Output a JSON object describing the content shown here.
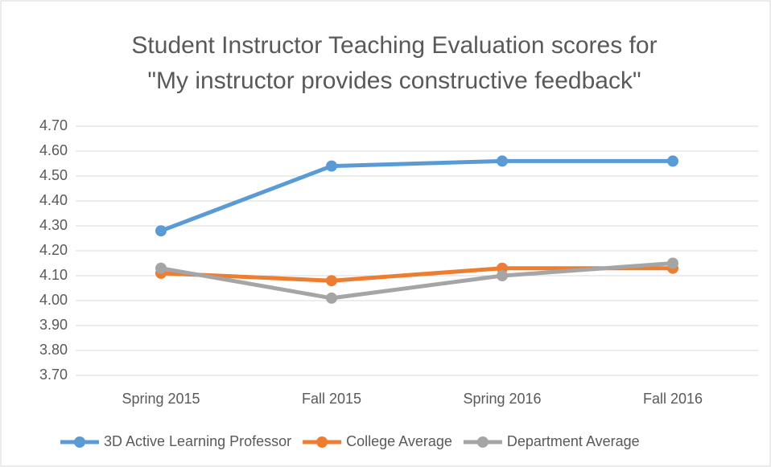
{
  "chart_data": {
    "type": "line",
    "title": [
      "Student Instructor Teaching Evaluation scores for",
      "\"My instructor provides constructive feedback\""
    ],
    "categories": [
      "Spring 2015",
      "Fall 2015",
      "Spring 2016",
      "Fall 2016"
    ],
    "series": [
      {
        "name": "3D Active Learning Professor",
        "color": "#5b9bd5",
        "values": [
          4.28,
          4.54,
          4.56,
          4.56
        ]
      },
      {
        "name": "College Average",
        "color": "#ed7d31",
        "values": [
          4.11,
          4.08,
          4.13,
          4.13
        ]
      },
      {
        "name": "Department Average",
        "color": "#a5a5a5",
        "values": [
          4.13,
          4.01,
          4.1,
          4.15
        ]
      }
    ],
    "ylim": [
      3.7,
      4.7
    ],
    "yticks": [
      {
        "value": 3.7,
        "label": "3.70"
      },
      {
        "value": 3.8,
        "label": "3.80"
      },
      {
        "value": 3.9,
        "label": "3.90"
      },
      {
        "value": 4.0,
        "label": "4.00"
      },
      {
        "value": 4.1,
        "label": "4.10"
      },
      {
        "value": 4.2,
        "label": "4.20"
      },
      {
        "value": 4.3,
        "label": "4.30"
      },
      {
        "value": 4.4,
        "label": "4.40"
      },
      {
        "value": 4.5,
        "label": "4.50"
      },
      {
        "value": 4.6,
        "label": "4.60"
      },
      {
        "value": 4.7,
        "label": "4.70"
      }
    ],
    "grid": true,
    "legend": "bottom"
  }
}
